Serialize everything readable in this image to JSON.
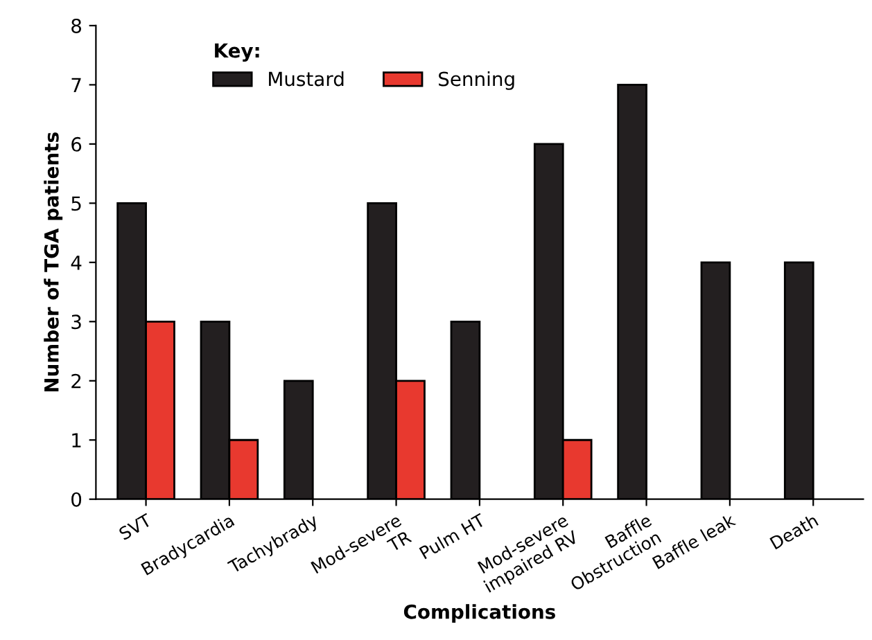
{
  "chart_data": {
    "type": "bar",
    "xlabel": "Complications",
    "ylabel": "Number of TGA patients",
    "legend_title": "Key:",
    "legend": "top",
    "categories": [
      "SVT",
      "Bradycardia",
      "Tachybrady",
      "Mod-severe\nTR",
      "Pulm HT",
      "Mod-severe\nimpaired RV",
      "Baffle\nObstruction",
      "Baffle leak",
      "Death"
    ],
    "series": [
      {
        "name": "Mustard",
        "color": "#231f20",
        "values": [
          5,
          3,
          2,
          5,
          3,
          6,
          7,
          4,
          4
        ]
      },
      {
        "name": "Senning",
        "color": "#e8392f",
        "values": [
          3,
          1,
          null,
          2,
          null,
          1,
          null,
          null,
          null
        ]
      }
    ],
    "ylim": [
      0,
      8
    ],
    "yticks": [
      0,
      1,
      2,
      3,
      4,
      5,
      6,
      7,
      8
    ],
    "grid": false
  }
}
